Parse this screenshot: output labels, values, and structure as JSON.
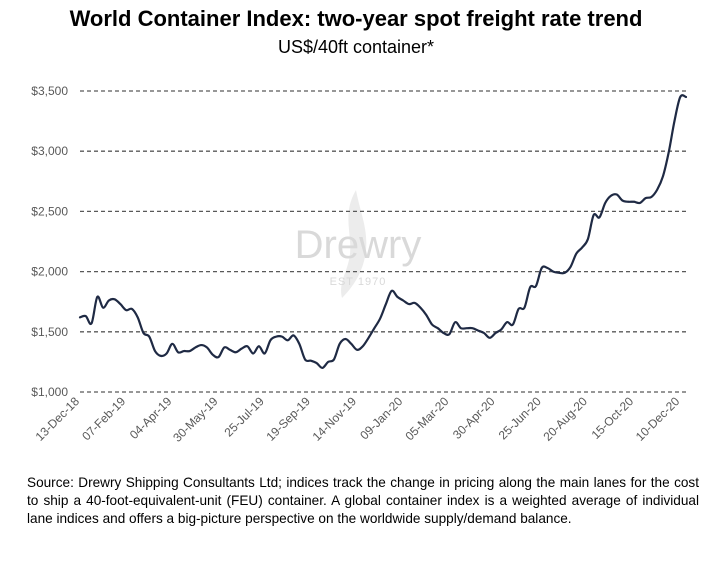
{
  "chart_data": {
    "type": "line",
    "title": "World Container Index: two-year spot freight rate trend",
    "subtitle": "US$/40ft container*",
    "xlabel": "",
    "ylabel": "",
    "ylim": [
      1000,
      3500
    ],
    "y_ticks": [
      "$1,000",
      "$1,500",
      "$2,000",
      "$2,500",
      "$3,000",
      "$3,500"
    ],
    "y_tick_values": [
      1000,
      1500,
      2000,
      2500,
      3000,
      3500
    ],
    "x_tick_labels": [
      "13-Dec-18",
      "07-Feb-19",
      "04-Apr-19",
      "30-May-19",
      "25-Jul-19",
      "19-Sep-19",
      "14-Nov-19",
      "09-Jan-20",
      "05-Mar-20",
      "30-Apr-20",
      "25-Jun-20",
      "20-Aug-20",
      "15-Oct-20",
      "10-Dec-20"
    ],
    "grid": "horizontal-dashed",
    "legend": "none",
    "series": [
      {
        "color": "#1f2a44",
        "x": [
          "13-Dec-18",
          "20-Dec-18",
          "27-Dec-18",
          "03-Jan-19",
          "10-Jan-19",
          "17-Jan-19",
          "24-Jan-19",
          "31-Jan-19",
          "07-Feb-19",
          "14-Feb-19",
          "21-Feb-19",
          "28-Feb-19",
          "07-Mar-19",
          "14-Mar-19",
          "21-Mar-19",
          "28-Mar-19",
          "04-Apr-19",
          "11-Apr-19",
          "18-Apr-19",
          "25-Apr-19",
          "02-May-19",
          "09-May-19",
          "16-May-19",
          "23-May-19",
          "30-May-19",
          "06-Jun-19",
          "13-Jun-19",
          "20-Jun-19",
          "27-Jun-19",
          "04-Jul-19",
          "11-Jul-19",
          "18-Jul-19",
          "25-Jul-19",
          "01-Aug-19",
          "08-Aug-19",
          "15-Aug-19",
          "22-Aug-19",
          "29-Aug-19",
          "05-Sep-19",
          "12-Sep-19",
          "19-Sep-19",
          "26-Sep-19",
          "03-Oct-19",
          "10-Oct-19",
          "17-Oct-19",
          "24-Oct-19",
          "31-Oct-19",
          "07-Nov-19",
          "14-Nov-19",
          "21-Nov-19",
          "28-Nov-19",
          "05-Dec-19",
          "12-Dec-19",
          "19-Dec-19",
          "26-Dec-19",
          "02-Jan-20",
          "09-Jan-20",
          "16-Jan-20",
          "23-Jan-20",
          "30-Jan-20",
          "06-Feb-20",
          "13-Feb-20",
          "20-Feb-20",
          "27-Feb-20",
          "05-Mar-20",
          "12-Mar-20",
          "19-Mar-20",
          "26-Mar-20",
          "02-Apr-20",
          "09-Apr-20",
          "16-Apr-20",
          "23-Apr-20",
          "30-Apr-20",
          "07-May-20",
          "14-May-20",
          "21-May-20",
          "28-May-20",
          "04-Jun-20",
          "11-Jun-20",
          "18-Jun-20",
          "25-Jun-20",
          "02-Jul-20",
          "09-Jul-20",
          "16-Jul-20",
          "23-Jul-20",
          "30-Jul-20",
          "06-Aug-20",
          "13-Aug-20",
          "20-Aug-20",
          "27-Aug-20",
          "03-Sep-20",
          "10-Sep-20",
          "17-Sep-20",
          "24-Sep-20",
          "01-Oct-20",
          "08-Oct-20",
          "15-Oct-20",
          "22-Oct-20",
          "29-Oct-20",
          "05-Nov-20",
          "12-Nov-20",
          "19-Nov-20",
          "26-Nov-20",
          "03-Dec-20",
          "10-Dec-20",
          "17-Dec-20"
        ],
        "values": [
          1620,
          1630,
          1570,
          1790,
          1700,
          1760,
          1770,
          1730,
          1680,
          1690,
          1620,
          1490,
          1460,
          1340,
          1300,
          1320,
          1400,
          1330,
          1340,
          1340,
          1370,
          1390,
          1370,
          1310,
          1290,
          1370,
          1350,
          1330,
          1360,
          1380,
          1320,
          1380,
          1320,
          1430,
          1460,
          1460,
          1430,
          1470,
          1400,
          1270,
          1260,
          1240,
          1200,
          1250,
          1270,
          1400,
          1440,
          1400,
          1350,
          1380,
          1450,
          1530,
          1610,
          1730,
          1840,
          1790,
          1760,
          1730,
          1740,
          1700,
          1640,
          1560,
          1530,
          1490,
          1480,
          1580,
          1530,
          1530,
          1530,
          1510,
          1490,
          1450,
          1490,
          1520,
          1580,
          1560,
          1690,
          1700,
          1870,
          1880,
          2030,
          2030,
          2000,
          1990,
          1990,
          2040,
          2150,
          2200,
          2270,
          2470,
          2450,
          2570,
          2630,
          2640,
          2590,
          2580,
          2580,
          2570,
          2610,
          2620,
          2680,
          2790,
          2990,
          3250,
          3450,
          3450
        ]
      }
    ]
  },
  "watermark": {
    "brand": "Drewry",
    "tagline": "EST 1970"
  },
  "source_text": "Source: Drewry Shipping Consultants Ltd;  indices track the change in pricing along the main lanes for the cost to ship a 40-foot-equivalent-unit  (FEU) container. A global container index is a weighted average of individual lane indices and offers a big-picture perspective on the worldwide supply/demand  balance.",
  "colors": {
    "line": "#1f2a44",
    "grid": "#595959",
    "watermark": "#d9d9d9"
  }
}
